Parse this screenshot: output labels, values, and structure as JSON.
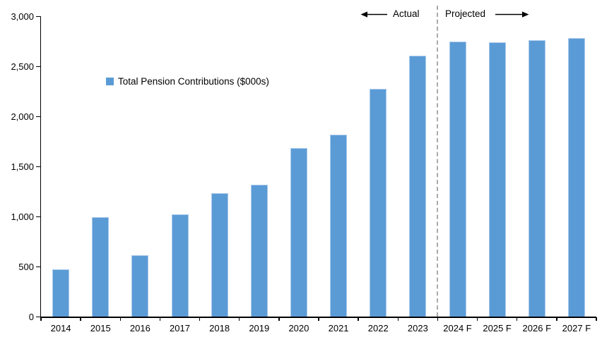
{
  "header": {
    "actual_label": "Actual",
    "projected_label": "Projected"
  },
  "legend": {
    "label": "Total Pension Contributions ($000s)",
    "marker_color": "#5B9BD5"
  },
  "chart_data": {
    "type": "bar",
    "title": "",
    "categories": [
      "2014",
      "2015",
      "2016",
      "2017",
      "2018",
      "2019",
      "2020",
      "2021",
      "2022",
      "2023",
      "2024 F",
      "2025 F",
      "2026 F",
      "2027 F"
    ],
    "values": [
      475,
      995,
      610,
      1020,
      1235,
      1320,
      1680,
      1815,
      2275,
      2605,
      2745,
      2740,
      2760,
      2785
    ],
    "series_name": "Total Pension Contributions ($000s)",
    "xlabel": "",
    "ylabel": "",
    "ylim": [
      0,
      3000
    ],
    "ytick_step": 500,
    "ytick_labels": [
      "0",
      "500",
      "1,000",
      "1,500",
      "2,000",
      "2,500",
      "3,000"
    ],
    "grid": false,
    "legend_position": "inside-upper-left",
    "bar_color": "#5B9BD5",
    "bar_edge_color": "#A9C9EC",
    "axis_color": "#000000",
    "divider_after_index": 9,
    "divider_color": "#ABABAB",
    "annotations": [
      "Actual",
      "Projected"
    ]
  }
}
